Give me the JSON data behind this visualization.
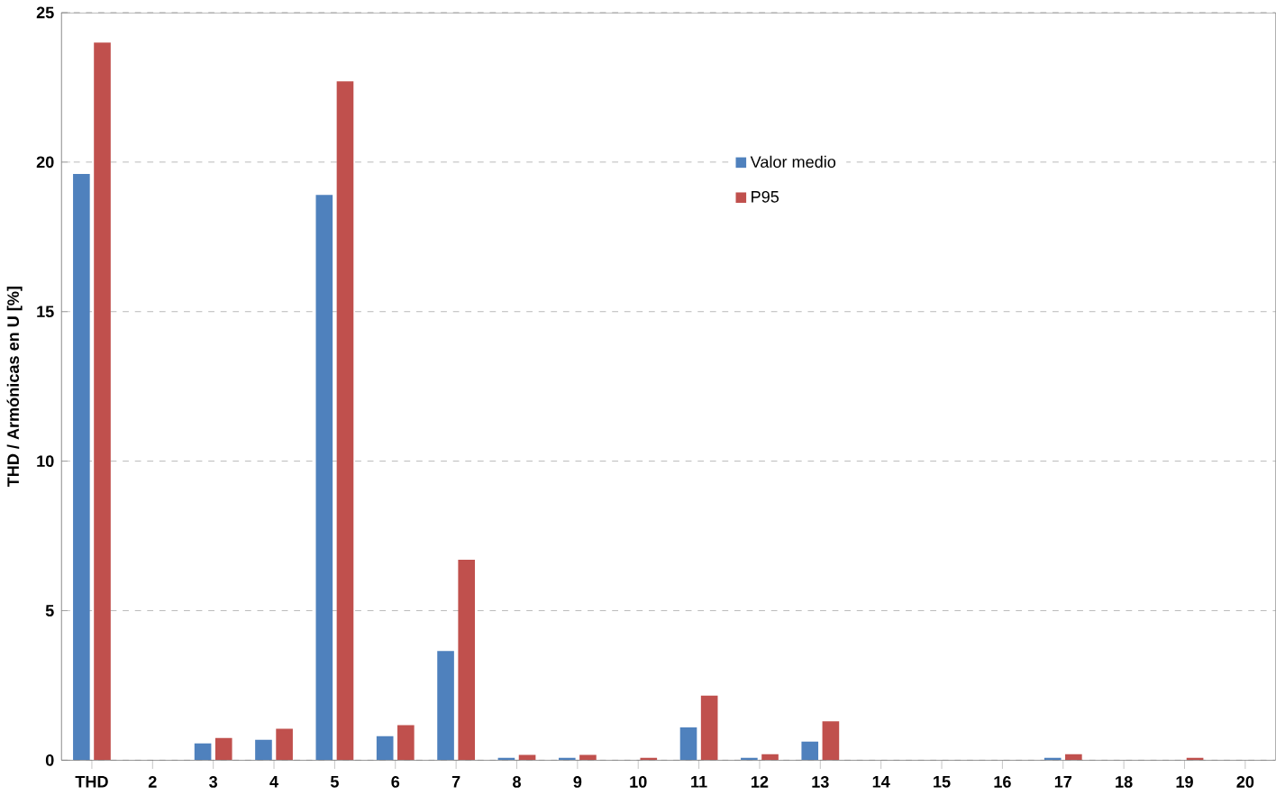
{
  "chart_data": {
    "type": "bar",
    "ylabel": "THD / Armónicas en U [%]",
    "categories": [
      "THD",
      "2",
      "3",
      "4",
      "5",
      "6",
      "7",
      "8",
      "9",
      "10",
      "11",
      "12",
      "13",
      "14",
      "15",
      "16",
      "17",
      "18",
      "19",
      "20"
    ],
    "series": [
      {
        "name": "Valor medio",
        "color": "#4f81bd",
        "values": [
          19.6,
          null,
          0.56,
          0.68,
          18.9,
          0.8,
          3.65,
          0.08,
          0.08,
          0,
          1.1,
          0.08,
          0.62,
          null,
          0,
          0,
          0.08,
          0,
          0,
          0
        ]
      },
      {
        "name": "P95",
        "color": "#c0504d",
        "values": [
          24.0,
          0,
          0.74,
          1.05,
          22.7,
          1.17,
          6.7,
          0.18,
          0.18,
          0.08,
          2.16,
          0.2,
          1.3,
          0,
          0,
          0,
          0.2,
          0,
          0.08,
          0
        ]
      }
    ],
    "ylim": [
      0,
      25
    ],
    "yticks": [
      0,
      5,
      10,
      15,
      20,
      25
    ],
    "grid": "y",
    "legend": "top right"
  }
}
